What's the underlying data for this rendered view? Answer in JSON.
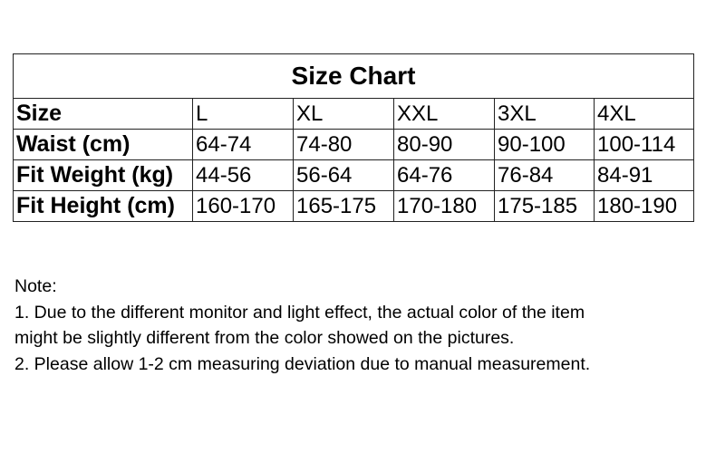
{
  "title": "Size Chart",
  "rows": [
    {
      "label": "Size",
      "values": [
        "L",
        "XL",
        "XXL",
        "3XL",
        "4XL"
      ]
    },
    {
      "label": "Waist (cm)",
      "values": [
        "64-74",
        "74-80",
        "80-90",
        "90-100",
        "100-114"
      ]
    },
    {
      "label": "Fit Weight (kg)",
      "values": [
        "44-56",
        "56-64",
        "64-76",
        "76-84",
        "84-91"
      ]
    },
    {
      "label": "Fit Height (cm)",
      "values": [
        "160-170",
        "165-175",
        "170-180",
        "175-185",
        "180-190"
      ]
    }
  ],
  "note": {
    "heading": "Note:",
    "line1": "1. Due to the different monitor and light effect, the actual color of the item",
    "line2": "might be slightly different from the color showed on the pictures.",
    "line3": "2. Please allow 1-2 cm measuring deviation due to manual measurement."
  }
}
